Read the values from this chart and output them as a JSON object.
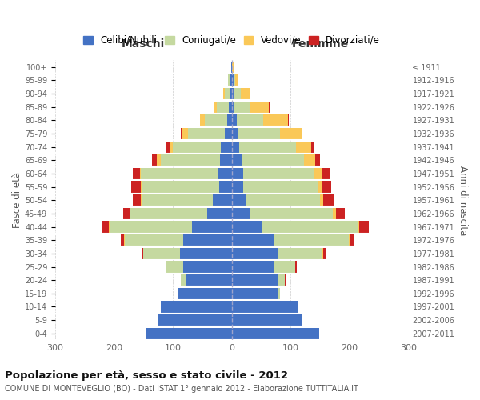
{
  "age_groups": [
    "0-4",
    "5-9",
    "10-14",
    "15-19",
    "20-24",
    "25-29",
    "30-34",
    "35-39",
    "40-44",
    "45-49",
    "50-54",
    "55-59",
    "60-64",
    "65-69",
    "70-74",
    "75-79",
    "80-84",
    "85-89",
    "90-94",
    "95-99",
    "100+"
  ],
  "birth_years": [
    "2007-2011",
    "2002-2006",
    "1997-2001",
    "1992-1996",
    "1987-1991",
    "1982-1986",
    "1977-1981",
    "1972-1976",
    "1967-1971",
    "1962-1966",
    "1957-1961",
    "1952-1956",
    "1947-1951",
    "1942-1946",
    "1937-1941",
    "1932-1936",
    "1927-1931",
    "1922-1926",
    "1917-1921",
    "1912-1916",
    "≤ 1911"
  ],
  "maschi": {
    "celibe": [
      145,
      125,
      120,
      90,
      78,
      82,
      88,
      82,
      68,
      42,
      32,
      22,
      24,
      20,
      18,
      12,
      8,
      5,
      3,
      3,
      1
    ],
    "coniugato": [
      0,
      0,
      1,
      2,
      8,
      30,
      62,
      100,
      140,
      130,
      120,
      130,
      130,
      100,
      82,
      62,
      38,
      20,
      9,
      3,
      0
    ],
    "vedovo": [
      0,
      0,
      0,
      0,
      0,
      0,
      0,
      1,
      1,
      2,
      2,
      3,
      2,
      8,
      5,
      10,
      8,
      6,
      2,
      0,
      0
    ],
    "divorziato": [
      0,
      0,
      0,
      0,
      0,
      1,
      3,
      5,
      12,
      10,
      14,
      16,
      12,
      8,
      6,
      3,
      0,
      0,
      0,
      0,
      0
    ]
  },
  "femmine": {
    "nubile": [
      148,
      118,
      112,
      78,
      78,
      72,
      78,
      72,
      52,
      32,
      24,
      20,
      20,
      16,
      13,
      10,
      8,
      5,
      5,
      3,
      1
    ],
    "coniugata": [
      0,
      0,
      1,
      4,
      12,
      36,
      76,
      126,
      162,
      140,
      126,
      126,
      120,
      106,
      96,
      72,
      46,
      26,
      10,
      3,
      0
    ],
    "vedova": [
      0,
      0,
      0,
      0,
      0,
      0,
      1,
      2,
      2,
      5,
      5,
      8,
      12,
      20,
      26,
      36,
      42,
      32,
      16,
      4,
      2
    ],
    "divorziata": [
      0,
      0,
      0,
      0,
      1,
      2,
      4,
      8,
      16,
      15,
      18,
      15,
      15,
      8,
      5,
      2,
      1,
      1,
      0,
      0,
      0
    ]
  },
  "colors": {
    "celibe": "#4472C4",
    "coniugato": "#C5D9A0",
    "vedovo": "#FAC858",
    "divorziato": "#CC2222"
  },
  "xlim": 300,
  "title": "Popolazione per età, sesso e stato civile - 2012",
  "subtitle": "COMUNE DI MONTEVEGLIO (BO) - Dati ISTAT 1° gennaio 2012 - Elaborazione TUTTITALIA.IT",
  "ylabel_left": "Fasce di età",
  "ylabel_right": "Anni di nascita",
  "xlabel_maschi": "Maschi",
  "xlabel_femmine": "Femmine",
  "legend_labels": [
    "Celibi/Nubili",
    "Coniugati/e",
    "Vedovi/e",
    "Divorziati/e"
  ],
  "background_color": "#ffffff",
  "grid_color": "#cccccc"
}
